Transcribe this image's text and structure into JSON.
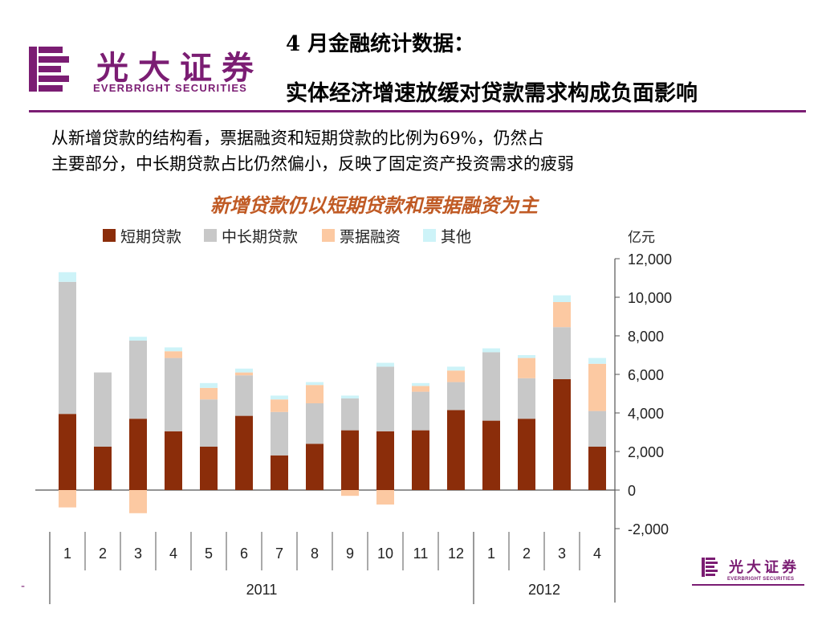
{
  "header": {
    "logo_cn": "光大证券",
    "logo_en": "EVERBRIGHT SECURITIES",
    "title_line1": "4 月金融统计数据：",
    "title_line2": "实体经济增速放缓对贷款需求构成负面影响"
  },
  "body": {
    "line1": "从新增贷款的结构看，票据融资和短期贷款的比例为69%，仍然占",
    "line2": "主要部分，中长期贷款占比仍然偏小，反映了固定资产投资需求的疲弱"
  },
  "footer": {
    "dash": "-",
    "logo_cn": "光大证券",
    "logo_en": "EVERBRIGHT SECURITIES"
  },
  "colors": {
    "brand": "#7b1d73",
    "short_term": "#8b2d0a",
    "mid_long_term": "#c8c8c8",
    "bill": "#fcc9a2",
    "other": "#cdf3f8"
  },
  "chart_data": {
    "type": "bar",
    "stacked": true,
    "title": "新增贷款仍以短期贷款和票据融资为主",
    "ylabel": "亿元",
    "ylim": [
      -2000,
      12000
    ],
    "yticks": [
      -2000,
      0,
      2000,
      4000,
      6000,
      8000,
      10000,
      12000
    ],
    "ytick_labels": [
      "-2,000",
      "0",
      "2,000",
      "4,000",
      "6,000",
      "8,000",
      "10,000",
      "12,000"
    ],
    "y_axis_position": "right",
    "legend_position": "top-left",
    "categories": [
      "1",
      "2",
      "3",
      "4",
      "5",
      "6",
      "7",
      "8",
      "9",
      "10",
      "11",
      "12",
      "1",
      "2",
      "3",
      "4"
    ],
    "groups": [
      {
        "label": "2011",
        "start": 0,
        "end": 11
      },
      {
        "label": "2012",
        "start": 12,
        "end": 15
      }
    ],
    "series": [
      {
        "name": "短期贷款",
        "color": "#8b2d0a",
        "values": [
          3950,
          2250,
          3700,
          3050,
          2250,
          3850,
          1800,
          2400,
          3100,
          3050,
          3100,
          4150,
          3600,
          3700,
          5750,
          2250
        ]
      },
      {
        "name": "中长期贷款",
        "color": "#c8c8c8",
        "values": [
          6850,
          3850,
          4050,
          3800,
          2450,
          2100,
          2250,
          2100,
          1650,
          3350,
          2000,
          1450,
          3550,
          2100,
          2700,
          1850
        ]
      },
      {
        "name": "票据融资",
        "color": "#fcc9a2",
        "values": [
          -900,
          0,
          -1200,
          350,
          600,
          150,
          650,
          950,
          -300,
          -750,
          300,
          600,
          0,
          1050,
          1300,
          2450
        ]
      },
      {
        "name": "其他",
        "color": "#cdf3f8",
        "values": [
          500,
          0,
          200,
          200,
          250,
          200,
          200,
          150,
          150,
          200,
          150,
          200,
          200,
          150,
          350,
          300
        ]
      }
    ]
  }
}
